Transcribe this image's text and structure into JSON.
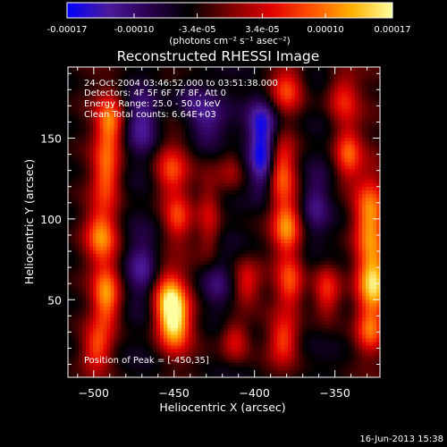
{
  "colorbar": {
    "ticks": [
      {
        "value": -0.00017,
        "label": "-0.00017"
      },
      {
        "value": -0.0001,
        "label": "-0.00010"
      },
      {
        "value": -3.4e-05,
        "label": "-3.4e-05"
      },
      {
        "value": 3.4e-05,
        "label": "3.4e-05"
      },
      {
        "value": 0.0001,
        "label": "0.00010"
      },
      {
        "value": 0.00017,
        "label": "0.00017"
      }
    ],
    "range": [
      -0.00017,
      0.00017
    ],
    "unit_label": "(photons cm⁻² s⁻¹ asec⁻²)",
    "stops": [
      "#0000ff",
      "#4b1b9c",
      "#2b0050",
      "#000000",
      "#7a0000",
      "#e00000",
      "#ff5000",
      "#ffb000",
      "#ffffa0"
    ]
  },
  "footer": {
    "date": "16-Jun-2013 15:38"
  },
  "chart_data": {
    "type": "heatmap",
    "title": "Reconstructed RHESSI Image",
    "xlabel": "Heliocentric X (arcsec)",
    "ylabel": "Heliocentric Y (arcsec)",
    "xlim": [
      -516,
      -322
    ],
    "ylim": [
      2,
      194
    ],
    "xticks": [
      -500,
      -450,
      -400,
      -350
    ],
    "yticks": [
      50,
      100,
      150
    ],
    "annotations": [
      "24-Oct-2004 03:46:52.000 to 03:51:38.000",
      "Detectors: 4F 5F 6F 7F 8F, Att 0",
      "Energy Range: 25.0 - 50.0 keV",
      "Clean    Total counts: 6.64E+03"
    ],
    "peak_label": "Position of Peak = [-450,35]",
    "peak": [
      -450,
      35
    ],
    "blobs": [
      {
        "x": -450,
        "y": 35,
        "amp": 1.0,
        "sx": 7,
        "sy": 12
      },
      {
        "x": -453,
        "y": 52,
        "amp": 0.85,
        "sx": 7,
        "sy": 12
      },
      {
        "x": -448,
        "y": 100,
        "amp": 0.55,
        "sx": 6,
        "sy": 10
      },
      {
        "x": -452,
        "y": 130,
        "amp": 0.6,
        "sx": 7,
        "sy": 12
      },
      {
        "x": -490,
        "y": 160,
        "amp": 0.8,
        "sx": 6,
        "sy": 12
      },
      {
        "x": -492,
        "y": 128,
        "amp": 0.72,
        "sx": 6,
        "sy": 14
      },
      {
        "x": -495,
        "y": 90,
        "amp": 0.78,
        "sx": 7,
        "sy": 12
      },
      {
        "x": -492,
        "y": 52,
        "amp": 0.85,
        "sx": 6,
        "sy": 14
      },
      {
        "x": -498,
        "y": 20,
        "amp": 0.6,
        "sx": 6,
        "sy": 10
      },
      {
        "x": -405,
        "y": 60,
        "amp": 0.55,
        "sx": 6,
        "sy": 10
      },
      {
        "x": -412,
        "y": 25,
        "amp": 0.55,
        "sx": 6,
        "sy": 9
      },
      {
        "x": -415,
        "y": 130,
        "amp": 0.35,
        "sx": 6,
        "sy": 10
      },
      {
        "x": -380,
        "y": 180,
        "amp": 0.6,
        "sx": 7,
        "sy": 10
      },
      {
        "x": -383,
        "y": 130,
        "amp": 0.7,
        "sx": 6,
        "sy": 14
      },
      {
        "x": -380,
        "y": 95,
        "amp": 0.78,
        "sx": 6,
        "sy": 12
      },
      {
        "x": -378,
        "y": 60,
        "amp": 0.62,
        "sx": 6,
        "sy": 12
      },
      {
        "x": -382,
        "y": 25,
        "amp": 0.6,
        "sx": 6,
        "sy": 10
      },
      {
        "x": -345,
        "y": 175,
        "amp": 0.55,
        "sx": 7,
        "sy": 12
      },
      {
        "x": -342,
        "y": 140,
        "amp": 0.7,
        "sx": 6,
        "sy": 12
      },
      {
        "x": -355,
        "y": 55,
        "amp": 0.65,
        "sx": 6,
        "sy": 12
      },
      {
        "x": -328,
        "y": 100,
        "amp": 0.85,
        "sx": 7,
        "sy": 18
      },
      {
        "x": -326,
        "y": 60,
        "amp": 1.0,
        "sx": 7,
        "sy": 14
      },
      {
        "x": -328,
        "y": 30,
        "amp": 0.6,
        "sx": 6,
        "sy": 10
      },
      {
        "x": -428,
        "y": 100,
        "amp": 0.4,
        "sx": 5,
        "sy": 20
      },
      {
        "x": -395,
        "y": 135,
        "amp": -0.7,
        "sx": 6,
        "sy": 14
      },
      {
        "x": -395,
        "y": 160,
        "amp": -0.6,
        "sx": 7,
        "sy": 12
      },
      {
        "x": -430,
        "y": 160,
        "amp": -0.45,
        "sx": 8,
        "sy": 12
      },
      {
        "x": -470,
        "y": 160,
        "amp": -0.45,
        "sx": 7,
        "sy": 14
      },
      {
        "x": -470,
        "y": 70,
        "amp": -0.4,
        "sx": 7,
        "sy": 14
      },
      {
        "x": -425,
        "y": 60,
        "amp": -0.35,
        "sx": 7,
        "sy": 12
      },
      {
        "x": -362,
        "y": 110,
        "amp": -0.35,
        "sx": 6,
        "sy": 14
      },
      {
        "x": -440,
        "y": 175,
        "amp": -0.3,
        "sx": 8,
        "sy": 10
      }
    ]
  }
}
